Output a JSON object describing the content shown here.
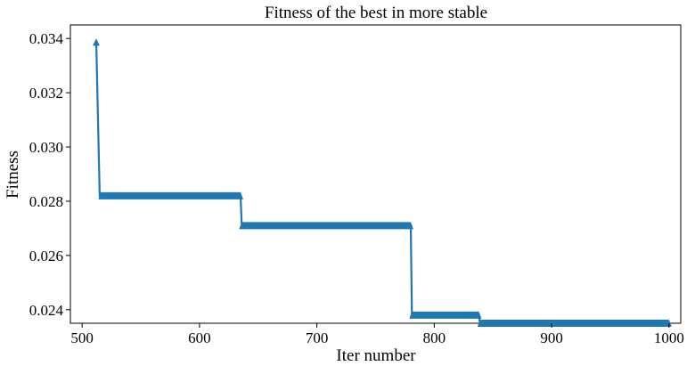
{
  "chart_data": {
    "type": "line",
    "title": "Fitness of the best in more stable",
    "xlabel": "Iter number",
    "ylabel": "Fitness",
    "xlim": [
      490,
      1010
    ],
    "ylim": [
      0.0235,
      0.0345
    ],
    "xticks": [
      500,
      600,
      700,
      800,
      900,
      1000
    ],
    "xtick_labels": [
      "500",
      "600",
      "700",
      "800",
      "900",
      "1000"
    ],
    "yticks": [
      0.024,
      0.026,
      0.028,
      0.03,
      0.032,
      0.034
    ],
    "ytick_labels": [
      "0.024",
      "0.026",
      "0.028",
      "0.030",
      "0.032",
      "0.034"
    ],
    "grid": false,
    "color": "#1f77b4",
    "series": [
      {
        "x": [
          512,
          515,
          516,
          635,
          636,
          780,
          781,
          838,
          839,
          1000
        ],
        "y": [
          0.0339,
          0.0282,
          0.0282,
          0.0282,
          0.0271,
          0.0271,
          0.0238,
          0.0238,
          0.0235,
          0.0235
        ]
      }
    ]
  }
}
